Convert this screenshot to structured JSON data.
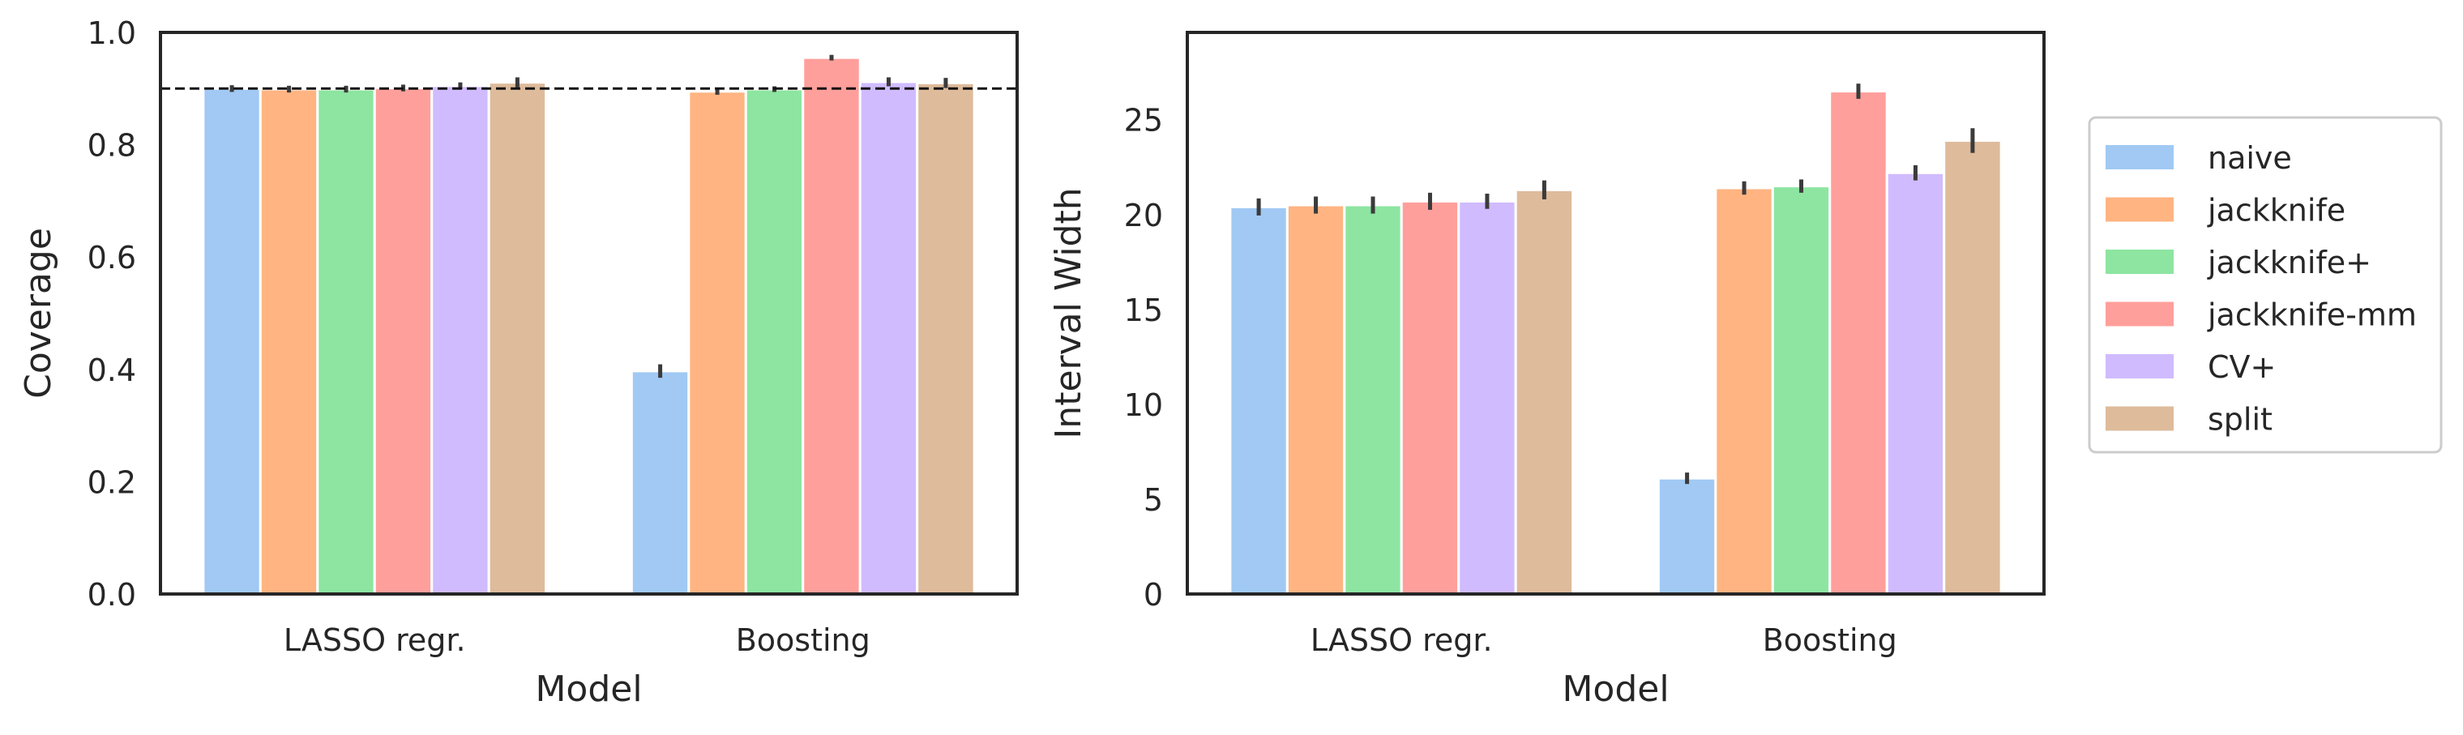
{
  "chart_data": [
    {
      "type": "bar",
      "xlabel": "Model",
      "ylabel": "Coverage",
      "categories": [
        "LASSO regr.",
        "Boosting"
      ],
      "ylim": [
        0,
        1.0
      ],
      "yticks": [
        "0.0",
        "0.2",
        "0.4",
        "0.6",
        "0.8",
        "1.0"
      ],
      "ytick_values": [
        0,
        0.2,
        0.4,
        0.6,
        0.8,
        1.0
      ],
      "reference_line": 0.9,
      "series": [
        {
          "name": "naive",
          "values": [
            0.9,
            0.397
          ],
          "err": [
            0.006,
            0.012
          ]
        },
        {
          "name": "jackknife",
          "values": [
            0.899,
            0.895
          ],
          "err": [
            0.006,
            0.006
          ]
        },
        {
          "name": "jackknife+",
          "values": [
            0.899,
            0.899
          ],
          "err": [
            0.006,
            0.005
          ]
        },
        {
          "name": "jackknife-mm",
          "values": [
            0.901,
            0.955
          ],
          "err": [
            0.006,
            0.005
          ]
        },
        {
          "name": "CV+",
          "values": [
            0.905,
            0.912
          ],
          "err": [
            0.006,
            0.008
          ]
        },
        {
          "name": "split",
          "values": [
            0.911,
            0.91
          ],
          "err": [
            0.009,
            0.009
          ]
        }
      ]
    },
    {
      "type": "bar",
      "xlabel": "Model",
      "ylabel": "Interval Width",
      "categories": [
        "LASSO regr.",
        "Boosting"
      ],
      "ylim": [
        0,
        29.6
      ],
      "yticks": [
        "0",
        "5",
        "10",
        "15",
        "20",
        "25"
      ],
      "ytick_values": [
        0,
        5,
        10,
        15,
        20,
        25
      ],
      "series": [
        {
          "name": "naive",
          "values": [
            20.4,
            6.1
          ],
          "err": [
            0.45,
            0.3
          ]
        },
        {
          "name": "jackknife",
          "values": [
            20.5,
            21.4
          ],
          "err": [
            0.45,
            0.35
          ]
        },
        {
          "name": "jackknife+",
          "values": [
            20.5,
            21.5
          ],
          "err": [
            0.45,
            0.35
          ]
        },
        {
          "name": "jackknife-mm",
          "values": [
            20.7,
            26.5
          ],
          "err": [
            0.45,
            0.4
          ]
        },
        {
          "name": "CV+",
          "values": [
            20.7,
            22.2
          ],
          "err": [
            0.4,
            0.4
          ]
        },
        {
          "name": "split",
          "values": [
            21.3,
            23.9
          ],
          "err": [
            0.5,
            0.65
          ]
        }
      ]
    }
  ],
  "legend": {
    "placement": "right",
    "entries": [
      {
        "label": "naive",
        "color": "#a1c9f4"
      },
      {
        "label": "jackknife",
        "color": "#ffb482"
      },
      {
        "label": "jackknife+",
        "color": "#8de5a1"
      },
      {
        "label": "jackknife-mm",
        "color": "#ff9f9b"
      },
      {
        "label": "CV+",
        "color": "#d0bbff"
      },
      {
        "label": "split",
        "color": "#debb9b"
      }
    ]
  }
}
